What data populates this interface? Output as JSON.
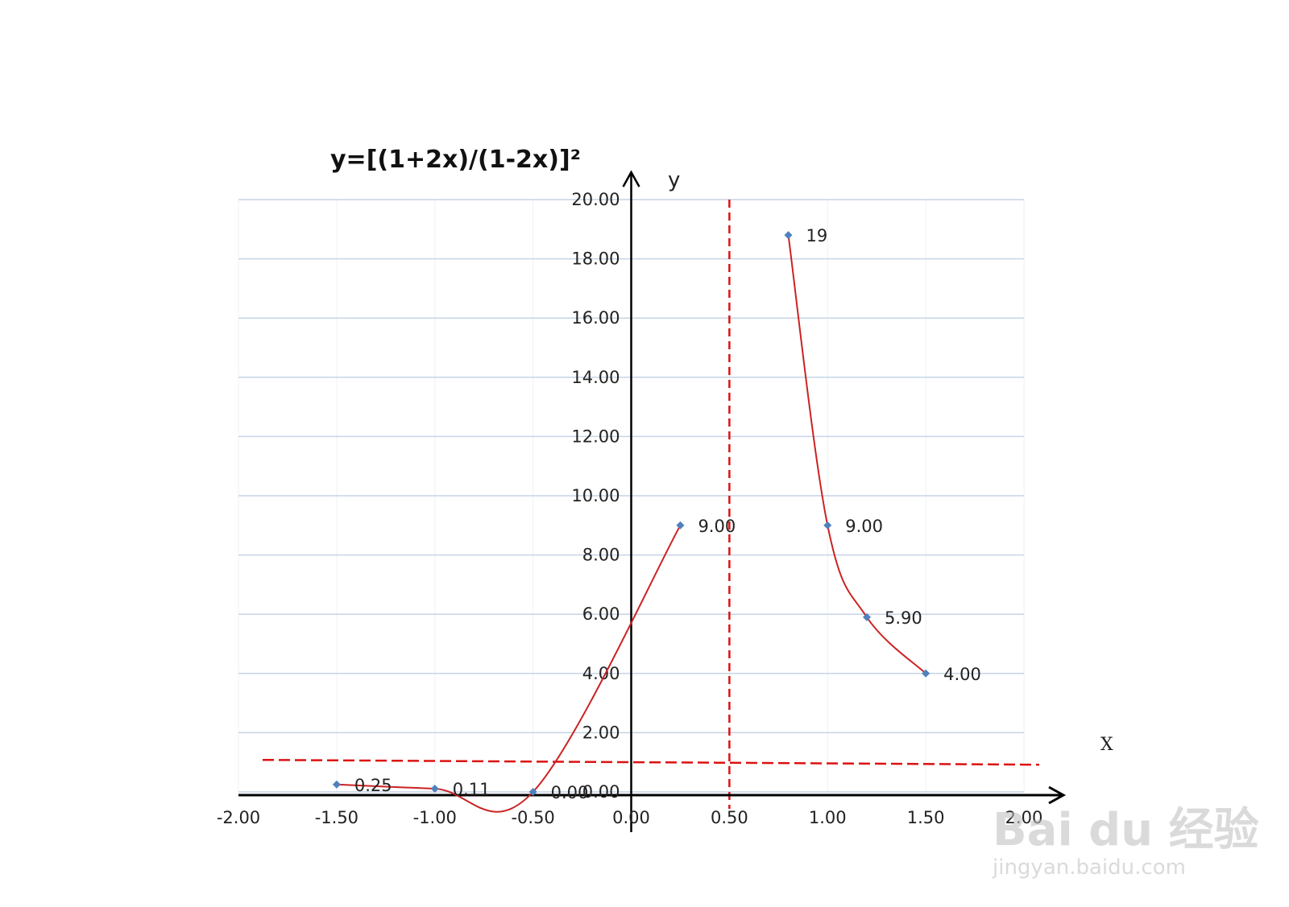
{
  "chart_data": {
    "type": "line",
    "title": "y=[(1+2x)/(1-2x)]²",
    "xlabel": "X",
    "ylabel": "y",
    "xlim": [
      -2,
      2
    ],
    "ylim": [
      0,
      20
    ],
    "x_ticks": [
      "-2.00",
      "-1.50",
      "-1.00",
      "-0.50",
      "0.00",
      "0.50",
      "1.00",
      "1.50",
      "2.00"
    ],
    "y_ticks": [
      "0.00",
      "2.00",
      "4.00",
      "6.00",
      "8.00",
      "10.00",
      "12.00",
      "14.00",
      "16.00",
      "18.00",
      "20.00"
    ],
    "grid": true,
    "series": [
      {
        "points": [
          {
            "x": -1.5,
            "y": 0.25,
            "label": "0.25"
          },
          {
            "x": -1.0,
            "y": 0.11,
            "label": "0.11"
          },
          {
            "x": -0.5,
            "y": 0.0,
            "label": "0.00"
          },
          {
            "x": 0.25,
            "y": 9.0,
            "label": "9.00"
          }
        ]
      },
      {
        "points": [
          {
            "x": 0.8,
            "y": 18.8,
            "label": "19"
          },
          {
            "x": 1.0,
            "y": 9.0,
            "label": "9.00"
          },
          {
            "x": 1.2,
            "y": 5.9,
            "label": "5.90"
          },
          {
            "x": 1.5,
            "y": 4.0,
            "label": "4.00"
          }
        ]
      }
    ],
    "asymptotes": [
      {
        "orientation": "vertical",
        "value": 0.5
      },
      {
        "orientation": "horizontal",
        "value": 1
      }
    ],
    "colors": {
      "line": "#cc2222",
      "marker": "#4f81bd",
      "grid": "#c6d4e6",
      "asymptote": "#dd1111"
    }
  },
  "watermark": {
    "brand": "Bai du 经验",
    "url": "jingyan.baidu.com"
  }
}
